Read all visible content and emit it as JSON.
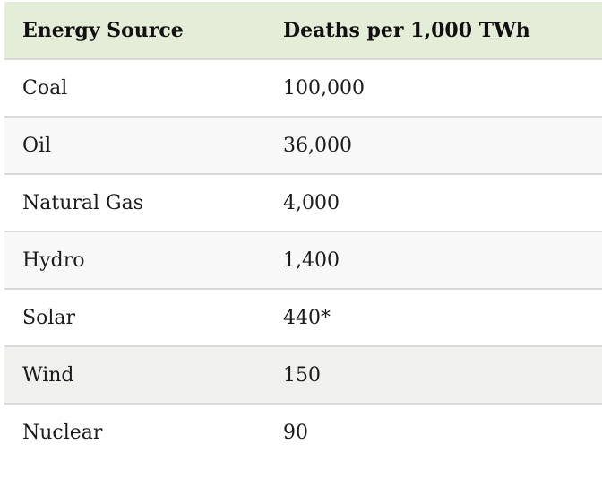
{
  "table": {
    "header": {
      "energy_source": "Energy Source",
      "deaths": "Deaths per 1,000 TWh"
    },
    "rows": [
      {
        "source": "Coal",
        "deaths": "100,000"
      },
      {
        "source": "Oil",
        "deaths": "36,000"
      },
      {
        "source": "Natural Gas",
        "deaths": "4,000"
      },
      {
        "source": "Hydro",
        "deaths": "1,400"
      },
      {
        "source": "Solar",
        "deaths": "440*"
      },
      {
        "source": "Wind",
        "deaths": "150"
      },
      {
        "source": "Nuclear",
        "deaths": "90"
      }
    ],
    "highlighted_row_index": 5
  },
  "colors": {
    "header_bg": "#e4edd8",
    "row_stripe_bg": "#f8f8f8",
    "row_highlight_bg": "#f0f0ef",
    "row_border": "#d9d9d9",
    "header_text": "#111111",
    "body_text": "#1b1b1b"
  },
  "chart_data": {
    "type": "table",
    "columns": [
      "Energy Source",
      "Deaths per 1,000 TWh"
    ],
    "categories": [
      "Coal",
      "Oil",
      "Natural Gas",
      "Hydro",
      "Solar",
      "Wind",
      "Nuclear"
    ],
    "values": [
      100000,
      36000,
      4000,
      1400,
      440,
      150,
      90
    ],
    "value_labels": [
      "100,000",
      "36,000",
      "4,000",
      "1,400",
      "440*",
      "150",
      "90"
    ]
  }
}
